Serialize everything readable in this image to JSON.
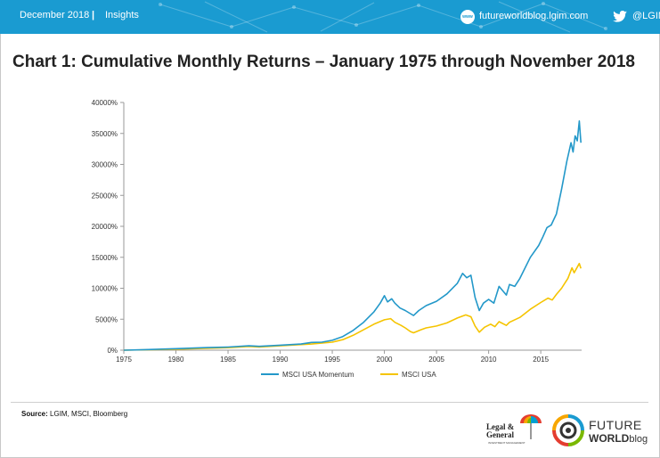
{
  "header": {
    "date": "December 2018",
    "separator": "|",
    "section": "Insights",
    "site_icon_text": "www",
    "website": "futureworldblog.lgim.com",
    "twitter": "@LGIM"
  },
  "page_title": "Chart 1: Cumulative Monthly Returns – January 1975 through November 2018",
  "footer": {
    "source_label": "Source:",
    "source_text": " LGIM, MSCI, Bloomberg",
    "lg_logo_line1": "Legal &",
    "lg_logo_line2": "General",
    "lg_logo_sub": "INVESTMENT MANAGEMENT",
    "fw_line1": "FUTURE",
    "fw_line2": "WORLD",
    "fw_line2_suffix": "blog"
  },
  "colors": {
    "header_bg": "#1a9bd1",
    "momentum": "#2398c9",
    "msci_usa": "#f5c400"
  },
  "chart_data": {
    "type": "line",
    "title": "",
    "xlabel": "",
    "ylabel": "",
    "xlim": [
      1975,
      2018.92
    ],
    "ylim": [
      0,
      40000
    ],
    "x_ticks": [
      "1975",
      "1980",
      "1985",
      "1990",
      "1995",
      "2000",
      "2005",
      "2010",
      "2015"
    ],
    "y_ticks": [
      "0%",
      "5000%",
      "10000%",
      "15000%",
      "20000%",
      "25000%",
      "30000%",
      "35000%",
      "40000%"
    ],
    "grid": false,
    "legend_position": "bottom",
    "series": [
      {
        "name": "MSCI USA Momentum",
        "color": "#2398c9",
        "points": [
          [
            1975,
            0
          ],
          [
            1977,
            80
          ],
          [
            1980,
            250
          ],
          [
            1983,
            420
          ],
          [
            1985,
            500
          ],
          [
            1987,
            700
          ],
          [
            1988,
            620
          ],
          [
            1990,
            800
          ],
          [
            1992,
            1000
          ],
          [
            1993,
            1250
          ],
          [
            1994,
            1300
          ],
          [
            1995,
            1600
          ],
          [
            1996,
            2200
          ],
          [
            1997,
            3200
          ],
          [
            1998,
            4500
          ],
          [
            1999,
            6200
          ],
          [
            1999.6,
            7600
          ],
          [
            2000,
            8800
          ],
          [
            2000.3,
            7800
          ],
          [
            2000.7,
            8300
          ],
          [
            2001,
            7600
          ],
          [
            2001.5,
            6800
          ],
          [
            2002,
            6400
          ],
          [
            2002.5,
            5900
          ],
          [
            2002.8,
            5600
          ],
          [
            2003.3,
            6400
          ],
          [
            2004,
            7200
          ],
          [
            2005,
            7900
          ],
          [
            2006,
            9100
          ],
          [
            2007,
            10800
          ],
          [
            2007.5,
            12400
          ],
          [
            2007.9,
            11700
          ],
          [
            2008.3,
            12100
          ],
          [
            2008.7,
            8500
          ],
          [
            2009.1,
            6400
          ],
          [
            2009.5,
            7600
          ],
          [
            2010,
            8200
          ],
          [
            2010.5,
            7600
          ],
          [
            2011,
            10300
          ],
          [
            2011.7,
            8900
          ],
          [
            2012,
            10600
          ],
          [
            2012.5,
            10300
          ],
          [
            2013,
            11600
          ],
          [
            2014,
            15000
          ],
          [
            2014.8,
            16900
          ],
          [
            2015.2,
            18300
          ],
          [
            2015.6,
            19800
          ],
          [
            2016,
            20200
          ],
          [
            2016.5,
            22000
          ],
          [
            2017,
            26000
          ],
          [
            2017.5,
            30500
          ],
          [
            2017.9,
            33500
          ],
          [
            2018.1,
            32000
          ],
          [
            2018.3,
            34600
          ],
          [
            2018.5,
            33800
          ],
          [
            2018.7,
            37000
          ],
          [
            2018.85,
            33500
          ]
        ]
      },
      {
        "name": "MSCI USA",
        "color": "#f5c400",
        "points": [
          [
            1975,
            0
          ],
          [
            1980,
            150
          ],
          [
            1985,
            400
          ],
          [
            1987,
            600
          ],
          [
            1988,
            520
          ],
          [
            1990,
            700
          ],
          [
            1993,
            1000
          ],
          [
            1995,
            1300
          ],
          [
            1996,
            1700
          ],
          [
            1997,
            2400
          ],
          [
            1998,
            3300
          ],
          [
            1999,
            4200
          ],
          [
            2000,
            4900
          ],
          [
            2000.6,
            5100
          ],
          [
            2001,
            4500
          ],
          [
            2001.6,
            4000
          ],
          [
            2002,
            3600
          ],
          [
            2002.5,
            3000
          ],
          [
            2002.8,
            2800
          ],
          [
            2003.5,
            3300
          ],
          [
            2004,
            3600
          ],
          [
            2005,
            3900
          ],
          [
            2006,
            4400
          ],
          [
            2007,
            5200
          ],
          [
            2007.8,
            5700
          ],
          [
            2008.3,
            5400
          ],
          [
            2008.7,
            3900
          ],
          [
            2009.1,
            2900
          ],
          [
            2009.6,
            3700
          ],
          [
            2010.2,
            4200
          ],
          [
            2010.6,
            3800
          ],
          [
            2011,
            4600
          ],
          [
            2011.7,
            4000
          ],
          [
            2012,
            4500
          ],
          [
            2013,
            5300
          ],
          [
            2014,
            6600
          ],
          [
            2015,
            7700
          ],
          [
            2015.7,
            8400
          ],
          [
            2016.1,
            8100
          ],
          [
            2016.5,
            9000
          ],
          [
            2017,
            10000
          ],
          [
            2017.6,
            11600
          ],
          [
            2018,
            13300
          ],
          [
            2018.2,
            12500
          ],
          [
            2018.7,
            14000
          ],
          [
            2018.85,
            13200
          ]
        ]
      }
    ]
  }
}
